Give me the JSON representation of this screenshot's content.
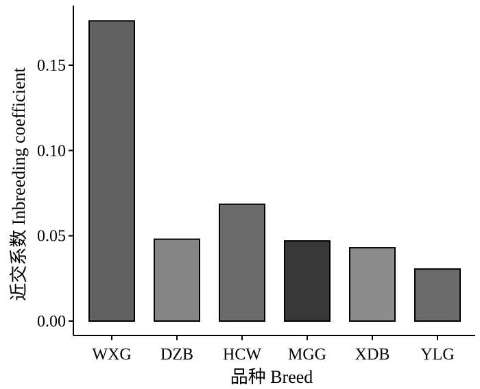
{
  "chart_data": {
    "type": "bar",
    "title": "",
    "xlabel": "品种 Breed",
    "ylabel": "近交系数 Inbreeding coefficient",
    "categories": [
      "WXG",
      "DZB",
      "HCW",
      "MGG",
      "XDB",
      "YLG"
    ],
    "values": [
      0.176,
      0.048,
      0.0685,
      0.047,
      0.043,
      0.0305
    ],
    "bar_colors": [
      "#616161",
      "#858585",
      "#6b6b6b",
      "#383838",
      "#8c8c8c",
      "#6b6b6b"
    ],
    "ylim": [
      0,
      0.185
    ],
    "yticks": [
      0.0,
      0.05,
      0.1,
      0.15
    ],
    "ytick_labels": [
      "0.00",
      "0.05",
      "0.10",
      "0.15"
    ],
    "grid": false,
    "legend": "none"
  }
}
